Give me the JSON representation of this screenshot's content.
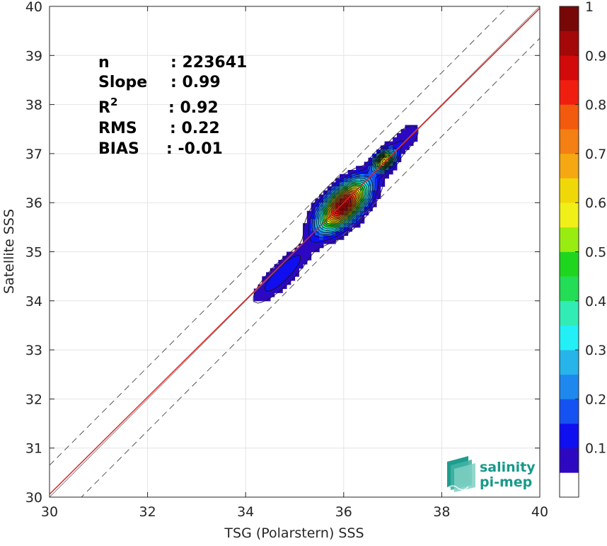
{
  "chart_data": {
    "type": "heatmap",
    "subtype": "density-contour-scatter",
    "xlabel": "TSG (Polarstern) SSS",
    "ylabel": "Satellite SSS",
    "xlim": [
      30,
      40
    ],
    "ylim": [
      30,
      40
    ],
    "xticks": [
      30,
      32,
      34,
      36,
      38,
      40
    ],
    "yticks": [
      30,
      31,
      32,
      33,
      34,
      35,
      36,
      37,
      38,
      39,
      40
    ],
    "grid": true,
    "reference_lines": [
      {
        "kind": "identity",
        "slope": 1,
        "intercept": 0,
        "color": "#888888"
      },
      {
        "kind": "regression",
        "slope": 0.99,
        "intercept": 0.36,
        "color": "#d62020"
      },
      {
        "kind": "offset",
        "slope": 1,
        "intercept": 0.65,
        "style": "dashed",
        "color": "#555555"
      },
      {
        "kind": "offset",
        "slope": 1,
        "intercept": -0.65,
        "style": "dashed",
        "color": "#555555"
      }
    ],
    "contour_levels": [
      0.05,
      0.1,
      0.15,
      0.2,
      0.25,
      0.3,
      0.35,
      0.4,
      0.45,
      0.5,
      0.55,
      0.6,
      0.65,
      0.7,
      0.75,
      0.8,
      0.85,
      0.9,
      0.95
    ],
    "density_blobs": [
      {
        "x": 36.0,
        "y": 35.95,
        "su": 0.42,
        "sv": 0.2,
        "a": 1.0
      },
      {
        "x": 36.82,
        "y": 36.85,
        "su": 0.16,
        "sv": 0.1,
        "a": 0.72
      },
      {
        "x": 37.2,
        "y": 37.25,
        "su": 0.35,
        "sv": 0.16,
        "a": 0.1
      },
      {
        "x": 34.75,
        "y": 34.55,
        "su": 0.55,
        "sv": 0.15,
        "a": 0.15
      }
    ],
    "colorbar": {
      "min": 0,
      "max": 1,
      "ticks": [
        0.1,
        0.2,
        0.3,
        0.4,
        0.5,
        0.6,
        0.7,
        0.8,
        0.9,
        1
      ],
      "tick_labels": [
        "0.1",
        "0.2",
        "0.3",
        "0.4",
        "0.5",
        "0.6",
        "0.7",
        "0.8",
        "0.9",
        "1"
      ],
      "colors": [
        "#5a0aa8",
        "#2d08c0",
        "#0f0ff0",
        "#1552f2",
        "#1f88ee",
        "#27b4ea",
        "#22f0f6",
        "#32ecb5",
        "#22dd55",
        "#1fd61f",
        "#99ec10",
        "#f0f018",
        "#f0d808",
        "#f5a812",
        "#f47f12",
        "#f25a0e",
        "#f01e0e",
        "#d20a0a",
        "#a40808",
        "#780707"
      ]
    },
    "stats": [
      {
        "label": "n",
        "value": ": 223641"
      },
      {
        "label": "Slope",
        "value": ": 0.99"
      },
      {
        "label": "R",
        "sup": "2",
        "value": ": 0.92"
      },
      {
        "label": "RMS",
        "value": ": 0.22"
      },
      {
        "label": "BIAS",
        "value": ": -0.01"
      }
    ]
  },
  "logo": {
    "line1": "salinity",
    "line2": "pi-mep",
    "color": "#17998a"
  }
}
